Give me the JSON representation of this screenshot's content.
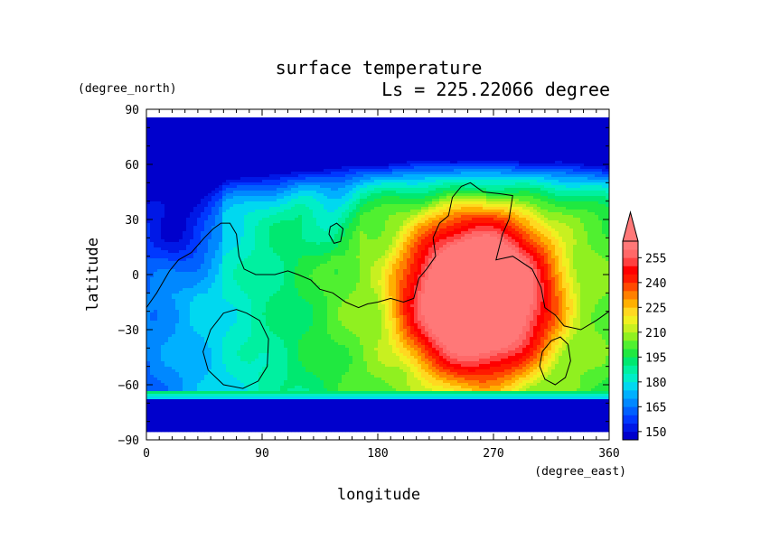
{
  "chart_data": {
    "type": "heatmap",
    "title": "surface temperature",
    "subtitle": "Ls = 225.22066 degree",
    "xlabel": "longitude",
    "ylabel": "latitude",
    "x_units": "(degree_east)",
    "y_units": "(degree_north)",
    "xlim": [
      0,
      360
    ],
    "ylim": [
      -90,
      90
    ],
    "x_ticks": [
      "0",
      "90",
      "180",
      "270",
      "360"
    ],
    "y_ticks": [
      "90",
      "60",
      "30",
      "0",
      "−30",
      "−60",
      "−90"
    ],
    "colorbar": {
      "labels": [
        "150",
        "165",
        "180",
        "195",
        "210",
        "225",
        "240",
        "255"
      ],
      "levels": [
        145,
        150,
        155,
        160,
        165,
        170,
        175,
        180,
        185,
        190,
        195,
        200,
        205,
        210,
        215,
        220,
        225,
        230,
        235,
        240,
        245,
        250,
        255,
        260
      ],
      "colors": [
        "#0000cc",
        "#0018e6",
        "#0038ff",
        "#0060ff",
        "#0088ff",
        "#00b0ff",
        "#00d8f0",
        "#00eec8",
        "#00f0a0",
        "#00e870",
        "#20e840",
        "#50f030",
        "#90f020",
        "#c8f020",
        "#f0f020",
        "#ffd820",
        "#ffb000",
        "#ff8000",
        "#ff4a00",
        "#ff1a00",
        "#ff0000",
        "#ff4040",
        "#ff6868",
        "#ff7878"
      ],
      "over_color": "#ff7878"
    },
    "grid": false,
    "legend_placement": "right"
  }
}
